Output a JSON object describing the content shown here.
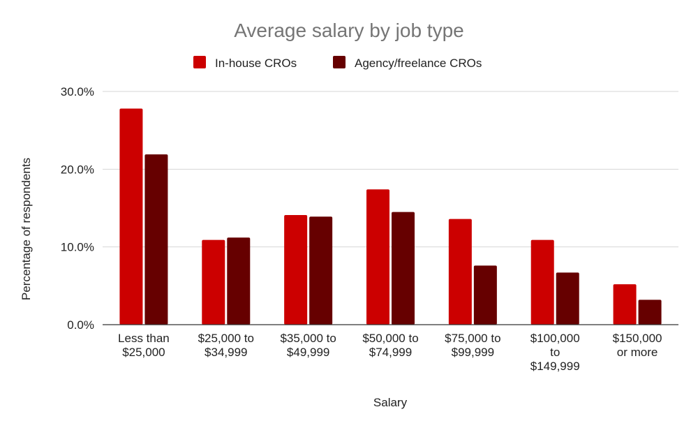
{
  "chart_data": {
    "type": "bar",
    "title": "Average salary by job type",
    "xlabel": "Salary",
    "ylabel": "Percentage of respondents",
    "categories": [
      [
        "Less than",
        "$25,000"
      ],
      [
        "$25,000 to",
        "$34,999"
      ],
      [
        "$35,000 to",
        "$49,999"
      ],
      [
        "$50,000 to",
        "$74,999"
      ],
      [
        "$75,000 to",
        "$99,999"
      ],
      [
        "$100,000",
        "to",
        "$149,999"
      ],
      [
        "$150,000",
        "or more"
      ]
    ],
    "series": [
      {
        "name": "In-house CROs",
        "color": "#cc0000",
        "values": [
          27.8,
          10.9,
          14.1,
          17.4,
          13.6,
          10.9,
          5.2
        ]
      },
      {
        "name": "Agency/freelance CROs",
        "color": "#660000",
        "values": [
          21.9,
          11.2,
          13.9,
          14.5,
          7.6,
          6.7,
          3.2
        ]
      }
    ],
    "ylim": [
      0,
      30
    ],
    "yticks": [
      "0.0%",
      "10.0%",
      "20.0%",
      "30.0%"
    ],
    "ytick_values": [
      0,
      10,
      20,
      30
    ],
    "grid": true,
    "legend_position": "top"
  }
}
